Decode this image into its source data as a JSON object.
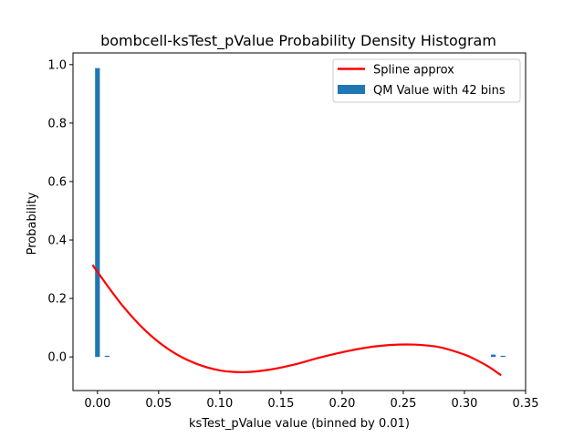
{
  "chart_data": {
    "type": "bar",
    "title": "bombcell-ksTest_pValue Probability Density Histogram",
    "xlabel": "ksTest_pValue value (binned by 0.01)",
    "ylabel": "Probability",
    "xlim": [
      -0.02,
      0.35
    ],
    "ylim": [
      -0.115,
      1.04
    ],
    "xticks": [
      "0.00",
      "0.05",
      "0.10",
      "0.15",
      "0.20",
      "0.25",
      "0.30",
      "0.35"
    ],
    "yticks": [
      "0.0",
      "0.2",
      "0.4",
      "0.6",
      "0.8",
      "1.0"
    ],
    "grid": false,
    "legend_position": "top-right",
    "legend": [
      "Spline approx",
      "QM Value with 42 bins"
    ],
    "bar_width": 0.0039,
    "histogram": {
      "name": "QM Value with 42 bins",
      "color": "#1f77b4",
      "x": [
        0.0,
        0.0079,
        0.3236,
        0.3315
      ],
      "values": [
        0.988,
        0.004,
        0.008,
        0.004
      ]
    },
    "spline": {
      "name": "Spline approx",
      "color": "#ff0000",
      "x": [
        -0.004,
        0.0,
        0.02,
        0.04,
        0.06,
        0.08,
        0.1,
        0.12,
        0.14,
        0.16,
        0.18,
        0.2,
        0.22,
        0.24,
        0.26,
        0.28,
        0.3,
        0.31,
        0.32,
        0.33
      ],
      "y": [
        0.315,
        0.291,
        0.178,
        0.087,
        0.021,
        -0.022,
        -0.046,
        -0.052,
        -0.044,
        -0.027,
        -0.004,
        0.016,
        0.032,
        0.041,
        0.042,
        0.033,
        0.008,
        -0.011,
        -0.034,
        -0.063
      ]
    }
  }
}
